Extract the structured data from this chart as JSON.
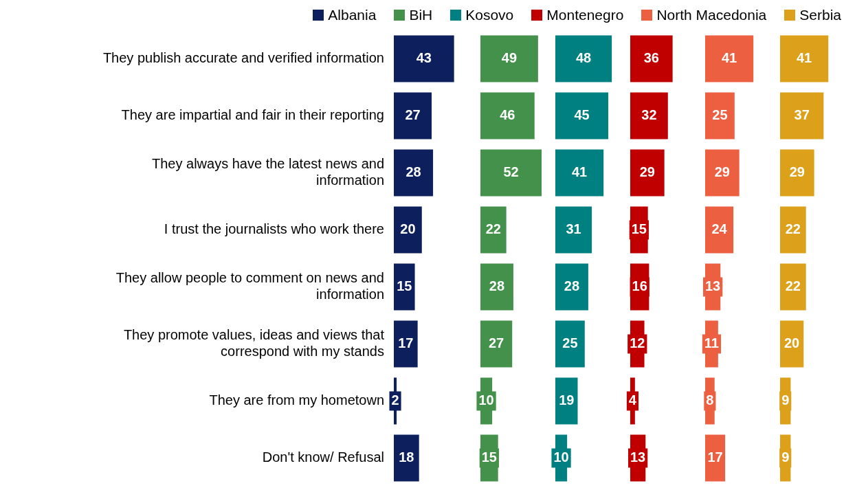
{
  "chart_data": [
    {
      "type": "bar",
      "orientation": "horizontal",
      "categories": [
        "They publish accurate and verified information",
        "They are impartial and fair in their reporting",
        "They always have the latest news and information",
        "I trust the journalists who work there",
        "They allow people to comment on news and information",
        "They promote values, ideas and views that correspond with my stands",
        "They are from my hometown",
        "Don't know/ Refusal"
      ],
      "series": [
        {
          "name": "Albania",
          "color": "#0d1f5c",
          "values": [
            43,
            27,
            28,
            20,
            15,
            17,
            2,
            18
          ]
        }
      ],
      "data_labels": true,
      "legend": "top",
      "tick_labels": "y"
    },
    {
      "type": "bar",
      "orientation": "horizontal",
      "categories": [
        null,
        null,
        null,
        null,
        null,
        null,
        null,
        null
      ],
      "series": [
        {
          "name": "BiH",
          "color": "#43914a",
          "values": [
            49,
            46,
            52,
            22,
            28,
            27,
            10,
            15
          ]
        }
      ],
      "data_labels": true,
      "legend": "top",
      "tick_labels": false
    },
    {
      "type": "bar",
      "orientation": "horizontal",
      "categories": [
        null,
        null,
        null,
        null,
        null,
        null,
        null,
        null
      ],
      "series": [
        {
          "name": "Kosovo",
          "color": "#008080",
          "values": [
            48,
            45,
            41,
            31,
            28,
            25,
            19,
            10
          ]
        }
      ],
      "data_labels": true,
      "legend": "top",
      "tick_labels": false
    },
    {
      "type": "bar",
      "orientation": "horizontal",
      "categories": [
        null,
        null,
        null,
        null,
        null,
        null,
        null,
        null
      ],
      "series": [
        {
          "name": "Montenegro",
          "color": "#c00000",
          "values": [
            36,
            32,
            29,
            15,
            16,
            12,
            4,
            13
          ]
        }
      ],
      "data_labels": true,
      "legend": "top",
      "tick_labels": false
    },
    {
      "type": "bar",
      "orientation": "horizontal",
      "categories": [
        null,
        null,
        null,
        null,
        null,
        null,
        null,
        null
      ],
      "series": [
        {
          "name": "North Macedonia",
          "color": "#ec5f41",
          "values": [
            41,
            25,
            29,
            24,
            13,
            11,
            8,
            17
          ]
        }
      ],
      "data_labels": true,
      "legend": "top",
      "tick_labels": false
    },
    {
      "type": "bar",
      "orientation": "horizontal",
      "categories": [
        null,
        null,
        null,
        null,
        null,
        null,
        null,
        null
      ],
      "series": [
        {
          "name": "Serbia",
          "color": "#dca01a",
          "values": [
            41,
            37,
            29,
            22,
            22,
            20,
            9,
            9
          ]
        }
      ],
      "data_labels": true,
      "legend": "top",
      "tick_labels": false
    }
  ]
}
